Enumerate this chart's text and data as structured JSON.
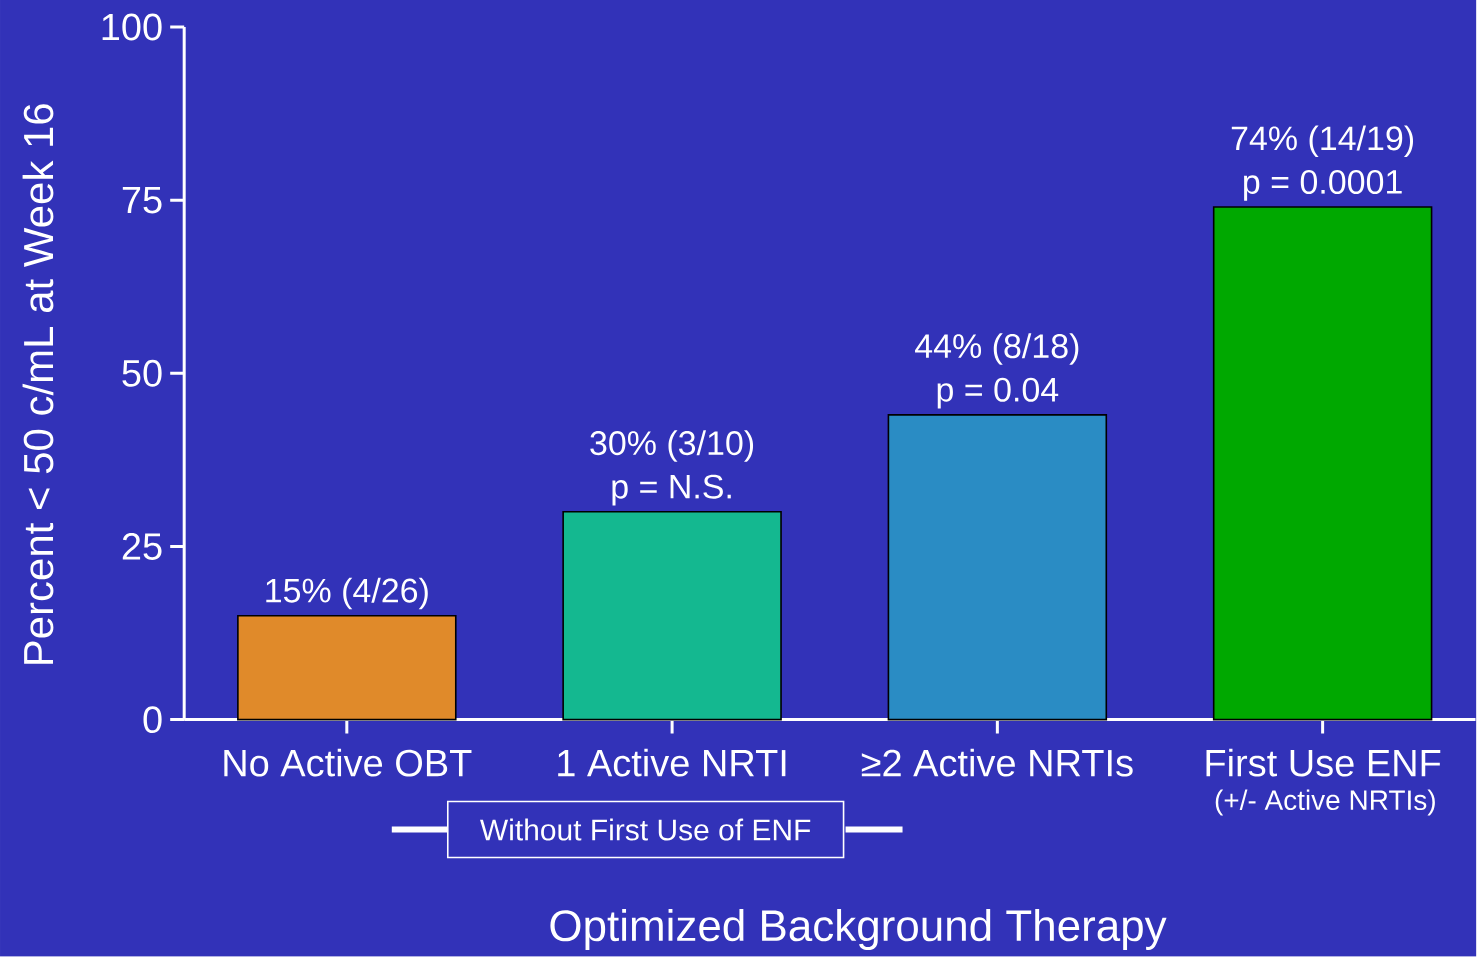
{
  "chart_data": {
    "type": "bar",
    "categories": [
      "No Active OBT",
      "1 Active NRTI",
      "≥2 Active NRTIs",
      "First Use ENF"
    ],
    "values": [
      15,
      30,
      44,
      74
    ],
    "colors": [
      "#e08a2a",
      "#14b890",
      "#2a8cc4",
      "#00a800"
    ],
    "value_labels": [
      "15% (4/26)",
      "30% (3/10)",
      "44% (8/18)",
      "74% (14/19)"
    ],
    "ylabel": "Percent < 50 c/mL at Week 16",
    "xlabel": "Optimized Background Therapy",
    "ylim": [
      0,
      100
    ],
    "yticks": [
      0,
      25,
      50,
      75,
      100
    ],
    "annotations": [
      "Without First Use of ENF",
      "(+/- Active NRTIs)",
      {
        "text": "p = N.S.",
        "x": "1 Active NRTI",
        "y": 30
      },
      {
        "text": "p = 0.04",
        "x": "≥2 Active NRTIs",
        "y": 44
      },
      {
        "text": "p = 0.0001",
        "x": "First Use ENF",
        "y": 74
      }
    ]
  }
}
